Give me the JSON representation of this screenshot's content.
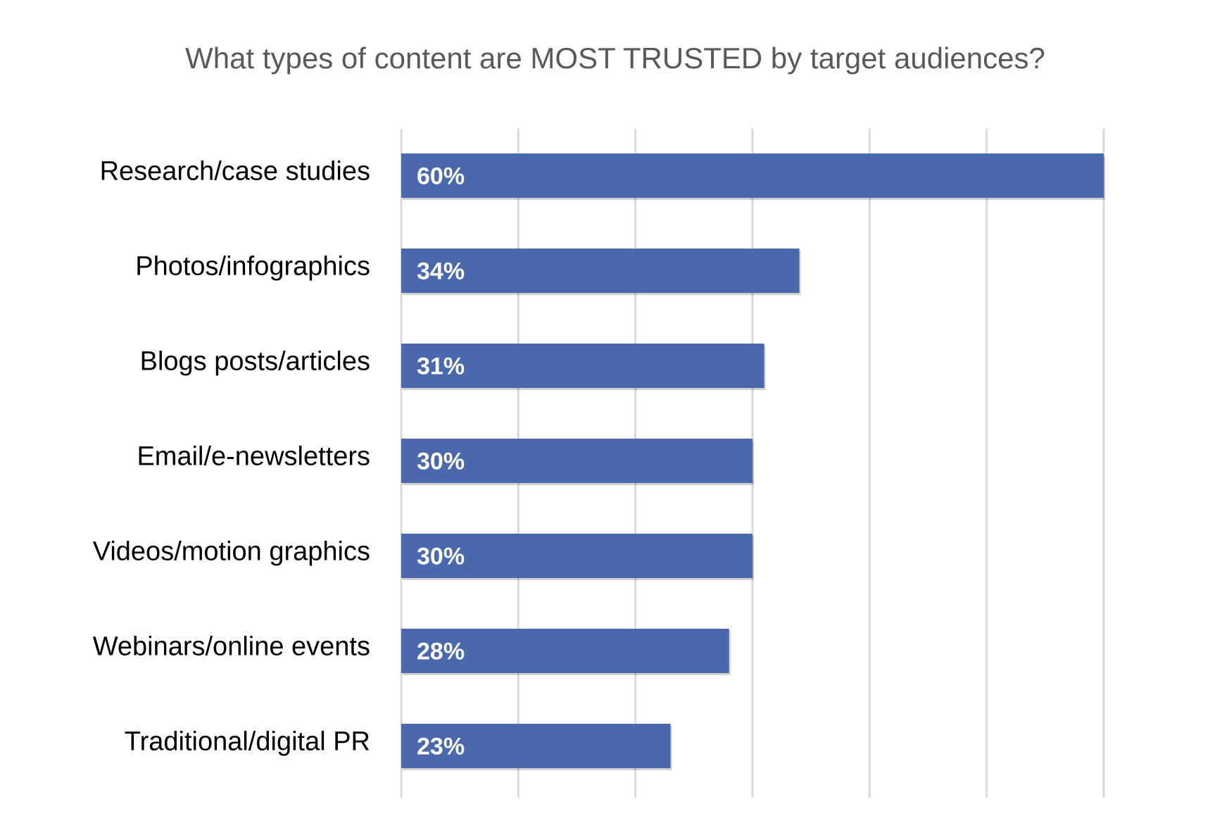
{
  "chart_data": {
    "type": "bar",
    "orientation": "horizontal",
    "title": "What types of content are MOST TRUSTED by target audiences?",
    "categories": [
      "Research/case studies",
      "Photos/infographics",
      "Blogs posts/articles",
      "Email/e-newsletters",
      "Videos/motion graphics",
      "Webinars/online events",
      "Traditional/digital PR"
    ],
    "values": [
      60,
      34,
      31,
      30,
      30,
      28,
      23
    ],
    "value_labels": [
      "60%",
      "34%",
      "31%",
      "30%",
      "30%",
      "28%",
      "23%"
    ],
    "unit": "%",
    "xlim": [
      0,
      60
    ],
    "x_major_step": 10,
    "grid": true,
    "legend": "none",
    "bar_color": "#4a69ac",
    "label_color": "#ffffff",
    "title_color": "#595959",
    "gridline_color": "#d9d9d9"
  }
}
